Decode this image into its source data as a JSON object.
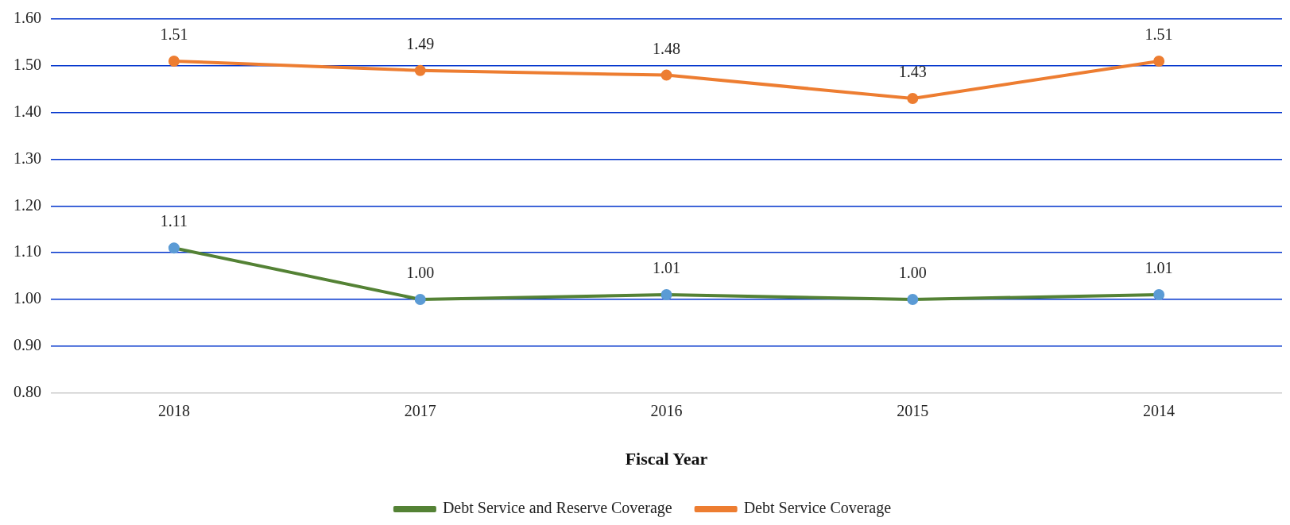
{
  "chart_data": {
    "type": "line",
    "xlabel": "Fiscal Year",
    "categories": [
      "2018",
      "2017",
      "2016",
      "2015",
      "2014"
    ],
    "series": [
      {
        "name": "Debt Service and Reserve Coverage",
        "color": "#548235",
        "colors": [
          "#5b9bd5",
          "#5b9bd5",
          "#5b9bd5",
          "#5b9bd5",
          "#5b9bd5"
        ],
        "values": [
          1.11,
          1.0,
          1.01,
          1.0,
          1.01
        ],
        "value_labels": [
          "1.11",
          "1.00",
          "1.01",
          "1.00",
          "1.01"
        ]
      },
      {
        "name": "Debt Service Coverage",
        "color": "#ed7d31",
        "values": [
          1.51,
          1.49,
          1.48,
          1.43,
          1.51
        ],
        "value_labels": [
          "1.51",
          "1.49",
          "1.48",
          "1.43",
          "1.51"
        ]
      }
    ],
    "ylim": [
      0.8,
      1.6
    ],
    "yticks": [
      {
        "value": 0.8,
        "label": "0.80"
      },
      {
        "value": 0.9,
        "label": "0.90"
      },
      {
        "value": 1.0,
        "label": "1.00"
      },
      {
        "value": 1.1,
        "label": "1.10"
      },
      {
        "value": 1.2,
        "label": "1.20"
      },
      {
        "value": 1.3,
        "label": "1.30"
      },
      {
        "value": 1.4,
        "label": "1.40"
      },
      {
        "value": 1.5,
        "label": "1.50"
      },
      {
        "value": 1.6,
        "label": "1.60"
      }
    ],
    "grid": "y",
    "legend": "bottom",
    "marker": "circle",
    "line_style": "solid"
  }
}
